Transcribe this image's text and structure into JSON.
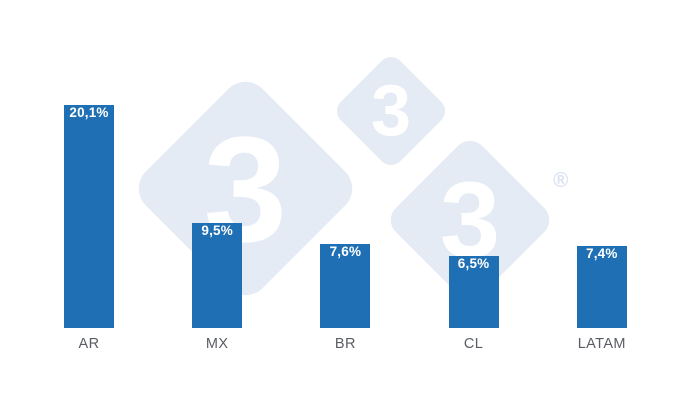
{
  "chart_data": {
    "type": "bar",
    "title": "",
    "categories": [
      "AR",
      "MX",
      "BR",
      "CL",
      "LATAM"
    ],
    "values": [
      20.1,
      9.5,
      7.6,
      6.5,
      7.4
    ],
    "value_labels": [
      "20,1%",
      "9,5%",
      "7,6%",
      "6,5%",
      "7,4%"
    ],
    "unit": "%",
    "decimal_separator": ",",
    "ylim": [
      0,
      20.1
    ],
    "grid": false,
    "axes_visible": false,
    "legend": false,
    "value_label_position": "inside-top",
    "bar_color": "#1f6fb4",
    "value_label_color": "#ffffff",
    "category_label_color": "#5a5d63"
  },
  "watermark": {
    "tiles": [
      {
        "glyph": "3"
      },
      {
        "glyph": "3"
      },
      {
        "glyph": "3"
      }
    ],
    "registered_symbol": "®",
    "tile_color": "#e4ebf4",
    "glyph_color": "#ffffff"
  }
}
